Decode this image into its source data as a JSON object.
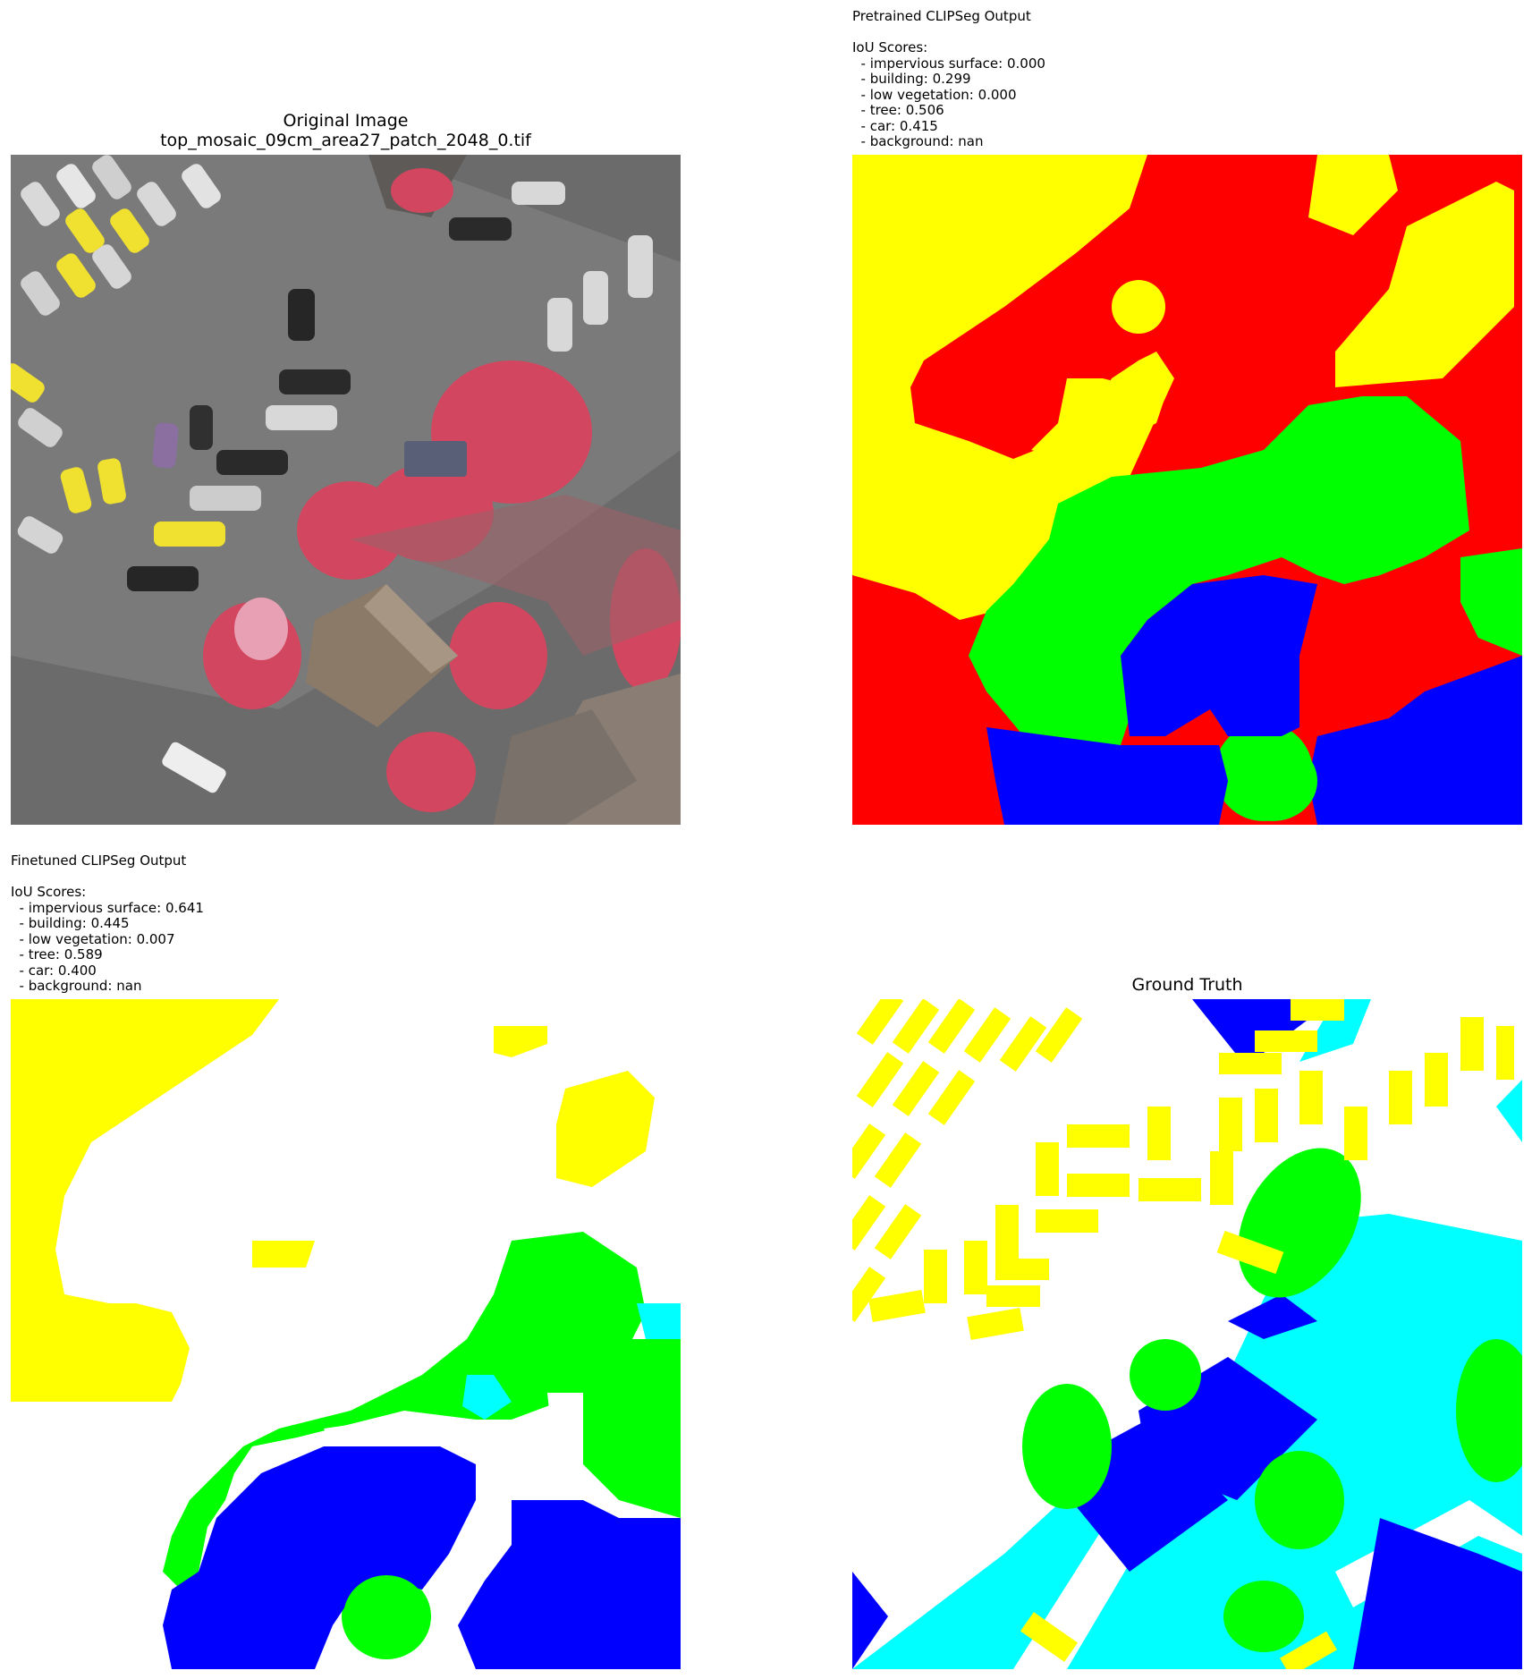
{
  "panels": {
    "original": {
      "title": "Original Image\ntop_mosaic_09cm_area27_patch_2048_0.tif"
    },
    "pretrained": {
      "caption": "Pretrained CLIPSeg Output\n\nIoU Scores:\n  - impervious surface: 0.000\n  - building: 0.299\n  - low vegetation: 0.000\n  - tree: 0.506\n  - car: 0.415\n  - background: nan"
    },
    "finetuned": {
      "caption": "Finetuned CLIPSeg Output\n\nIoU Scores:\n  - impervious surface: 0.641\n  - building: 0.445\n  - low vegetation: 0.007\n  - tree: 0.589\n  - car: 0.400\n  - background: nan"
    },
    "ground_truth": {
      "title": "Ground Truth"
    }
  },
  "class_colors": {
    "impervious_surface": "#ffffff",
    "building": "#0000ff",
    "low_vegetation": "#00ffff",
    "tree": "#00ff00",
    "car": "#ffff00",
    "background": "#ff0000"
  }
}
